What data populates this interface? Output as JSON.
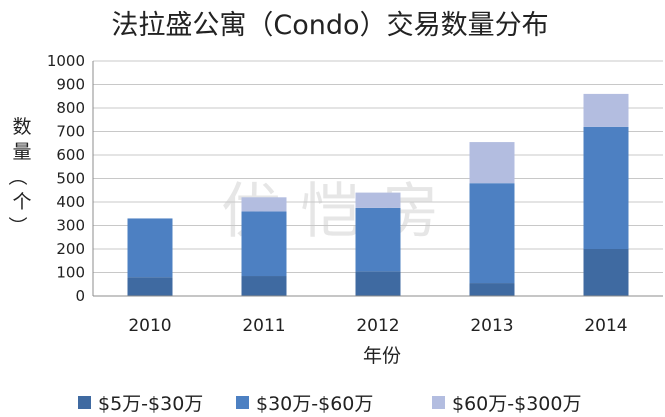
{
  "chart_data": {
    "type": "bar",
    "stacked": true,
    "title": "法拉盛公寓（Condo）交易数量分布",
    "xlabel": "年份",
    "ylabel": "数量（个）",
    "categories": [
      "2010",
      "2011",
      "2012",
      "2013",
      "2014"
    ],
    "ylim": [
      0,
      1000
    ],
    "yticks": [
      0,
      100,
      200,
      300,
      400,
      500,
      600,
      700,
      800,
      900,
      1000
    ],
    "grid": true,
    "legend_position": "bottom",
    "series": [
      {
        "name": "$5万-$30万",
        "color": "#3f6aa1",
        "values": [
          80,
          85,
          105,
          55,
          200
        ]
      },
      {
        "name": "$30万-$60万",
        "color": "#4d80c2",
        "values": [
          250,
          275,
          270,
          425,
          520
        ]
      },
      {
        "name": "$60万-$300万",
        "color": "#b3bde0",
        "values": [
          0,
          60,
          65,
          175,
          140
        ]
      }
    ]
  }
}
